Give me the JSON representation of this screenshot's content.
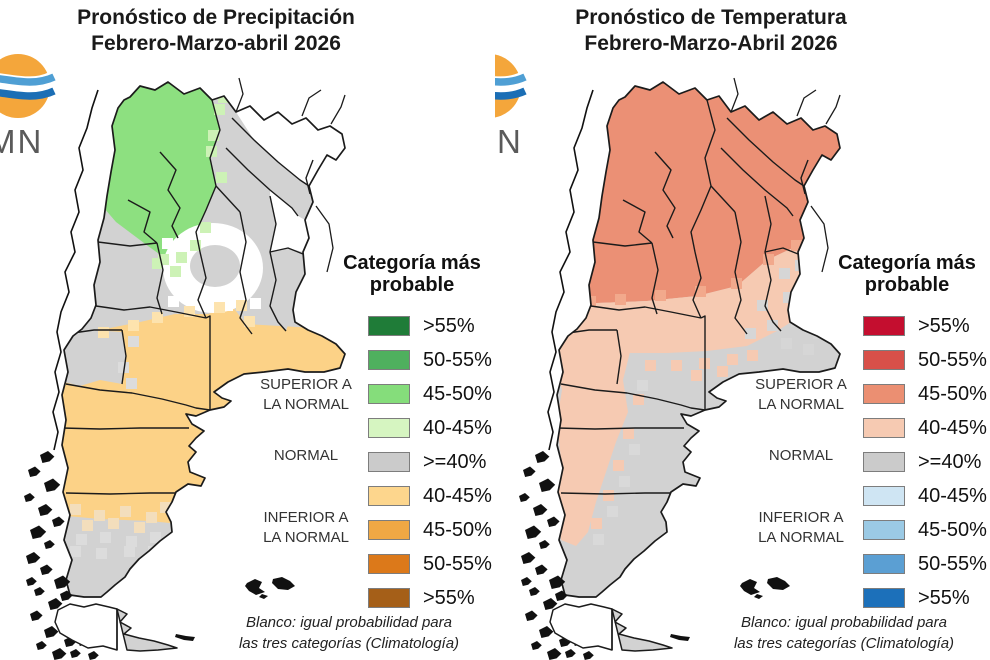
{
  "image": {
    "background": "#ffffff"
  },
  "panels": [
    {
      "id": "precipitacion",
      "title_line1": "Pronóstico de Precipitación",
      "title_line2": "Febrero-Marzo-abril 2026",
      "logo": {
        "text": "MN",
        "disc_color": "#f4a63b",
        "wave_light": "#4f9fd4",
        "wave_dark": "#1b6eb5",
        "letter_color": "#5a5a5a"
      },
      "legend": {
        "title_line1": "Categoría más",
        "title_line2": "probable",
        "groups": [
          {
            "line1": "SUPERIOR A",
            "line2": "LA NORMAL"
          },
          {
            "line1": "NORMAL",
            "line2": ""
          },
          {
            "line1": "INFERIOR A",
            "line2": "LA NORMAL"
          }
        ],
        "categories": [
          {
            "label": ">55%",
            "color": "#1f7c38"
          },
          {
            "label": "50-55%",
            "color": "#4fb05e"
          },
          {
            "label": "45-50%",
            "color": "#85dd7b"
          },
          {
            "label": "40-45%",
            "color": "#d6f5c1"
          },
          {
            "label": ">=40%",
            "color": "#cbcbcb"
          },
          {
            "label": "40-45%",
            "color": "#fdd68d"
          },
          {
            "label": "45-50%",
            "color": "#f0a844"
          },
          {
            "label": "50-55%",
            "color": "#dc791a"
          },
          {
            "label": ">55%",
            "color": "#a55f18"
          }
        ]
      },
      "footnote_line1": "Blanco: igual probabilidad para",
      "footnote_line2": "las tres categorías (Climatología)",
      "map_palette": {
        "base": "#d2d2d2",
        "white": "#ffffff",
        "cat_main": "#8de080",
        "cat_pale": "#cdf2b6",
        "cat2_main": "#fcd287",
        "cat2_pale": "#fde3ae",
        "mix_pale": "#f3debc",
        "mix_gray": "#dcdcdc",
        "fleck": "#f0a09a",
        "land_stroke": "#1b1b1b"
      }
    },
    {
      "id": "temperatura",
      "title_line1": "Pronóstico de Temperatura",
      "title_line2": "Febrero-Marzo-Abril 2026",
      "logo": {
        "text": "N",
        "disc_color": "#f4a63b",
        "wave_light": "#4f9fd4",
        "wave_dark": "#1b6eb5",
        "letter_color": "#5a5a5a"
      },
      "legend": {
        "title_line1": "Categoría más",
        "title_line2": "probable",
        "groups": [
          {
            "line1": "SUPERIOR A",
            "line2": "LA NORMAL"
          },
          {
            "line1": "NORMAL",
            "line2": ""
          },
          {
            "line1": "INFERIOR A",
            "line2": "LA NORMAL"
          }
        ],
        "categories": [
          {
            "label": ">55%",
            "color": "#c40e2f"
          },
          {
            "label": "50-55%",
            "color": "#d85049"
          },
          {
            "label": "45-50%",
            "color": "#eb8f72"
          },
          {
            "label": "40-45%",
            "color": "#f6cab2"
          },
          {
            "label": ">=40%",
            "color": "#cbcbcb"
          },
          {
            "label": "40-45%",
            "color": "#cfe5f3"
          },
          {
            "label": "45-50%",
            "color": "#9bcae5"
          },
          {
            "label": "50-55%",
            "color": "#5b9fd3"
          },
          {
            "label": ">55%",
            "color": "#1c70ba"
          }
        ]
      },
      "footnote_line1": "Blanco: igual probabilidad para",
      "footnote_line2": "las tres categorías (Climatología)",
      "map_palette": {
        "base": "#d2d2d2",
        "white": "#ffffff",
        "cat_main": "#eb9075",
        "cat_pale": "#f6cab2",
        "edge_mix": "#f2a98c",
        "mix_gray": "#d6d6d6",
        "strip_gray": "#d9d9d9",
        "land_stroke": "#1b1b1b"
      }
    }
  ]
}
